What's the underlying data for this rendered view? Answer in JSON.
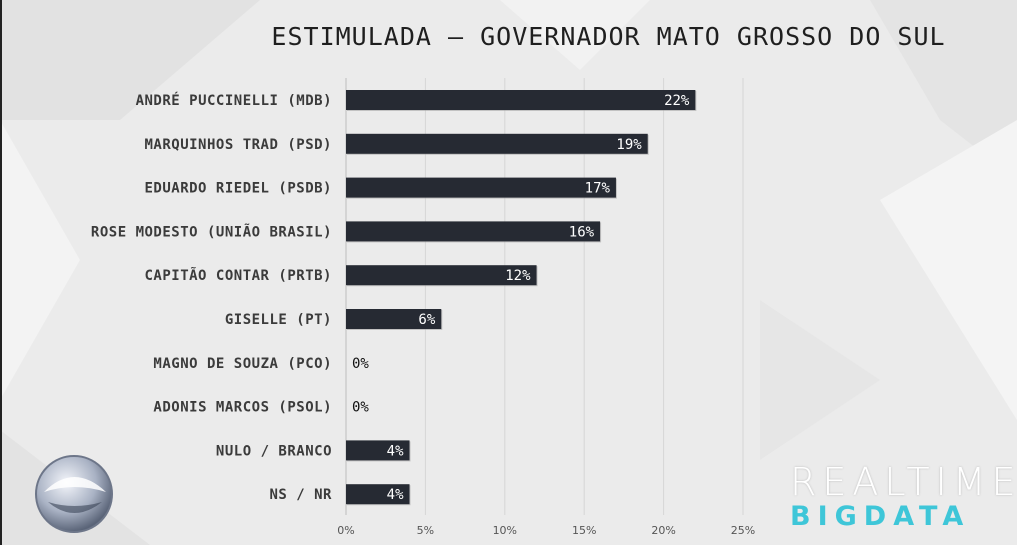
{
  "title": "ESTIMULADA – GOVERNADOR MATO GROSSO DO SUL",
  "brand": {
    "line1": "REALTIME",
    "line2": "BIGDATA",
    "accent": "#3ec6d8"
  },
  "colors": {
    "bar": "#262a33",
    "bar_label": "#ffffff",
    "outside_label": "#111111"
  },
  "chart_data": {
    "type": "bar",
    "orientation": "horizontal",
    "title": "ESTIMULADA – GOVERNADOR MATO GROSSO DO SUL",
    "categories": [
      "ANDRÉ PUCCINELLI (MDB)",
      "MARQUINHOS TRAD (PSD)",
      "EDUARDO RIEDEL (PSDB)",
      "ROSE MODESTO (UNIÃO BRASIL)",
      "CAPITÃO CONTAR (PRTB)",
      "GISELLE (PT)",
      "MAGNO DE SOUZA (PCO)",
      "ADONIS MARCOS (PSOL)",
      "NULO / BRANCO",
      "NS / NR"
    ],
    "values": [
      22,
      19,
      17,
      16,
      12,
      6,
      0,
      0,
      4,
      4
    ],
    "value_labels": [
      "22%",
      "19%",
      "17%",
      "16%",
      "12%",
      "6%",
      "0%",
      "0%",
      "4%",
      "4%"
    ],
    "xlim": [
      0,
      25
    ],
    "xticks": [
      0,
      5,
      10,
      15,
      20,
      25
    ],
    "xtick_labels": [
      "0%",
      "5%",
      "10%",
      "15%",
      "20%",
      "25%"
    ],
    "grid": true,
    "legend": "none"
  }
}
